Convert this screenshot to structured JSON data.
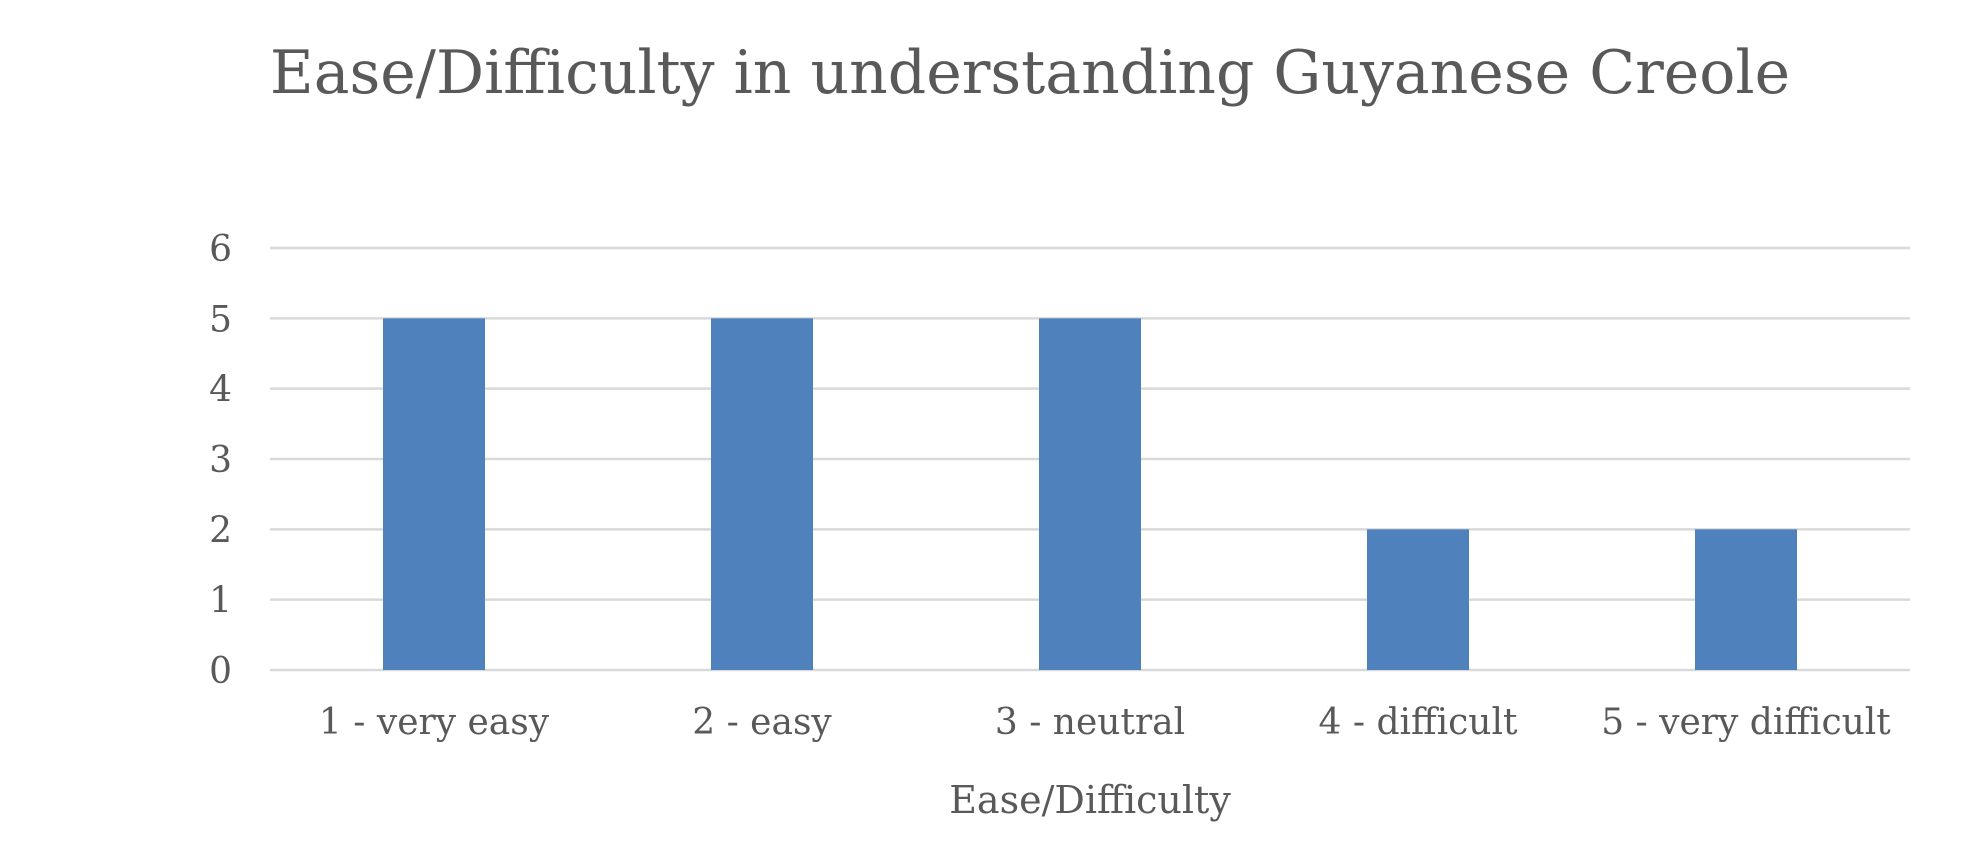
{
  "chart_data": {
    "type": "bar",
    "title": "Ease/Difficulty in understanding Guyanese Creole",
    "xlabel": "Ease/Difficulty",
    "ylabel": "",
    "categories": [
      "1 - very easy",
      "2 - easy",
      "3 - neutral",
      "4 - difficult",
      "5 - very difficult"
    ],
    "values": [
      5,
      5,
      5,
      2,
      2
    ],
    "ylim": [
      0,
      6
    ],
    "yticks": [
      "0",
      "1",
      "2",
      "3",
      "4",
      "5",
      "6"
    ],
    "grid": true,
    "legend": "none",
    "colors": {
      "bar": "#4F81BD",
      "grid": "#D9D9D9",
      "text": "#595959",
      "axis": "#D9D9D9"
    }
  }
}
